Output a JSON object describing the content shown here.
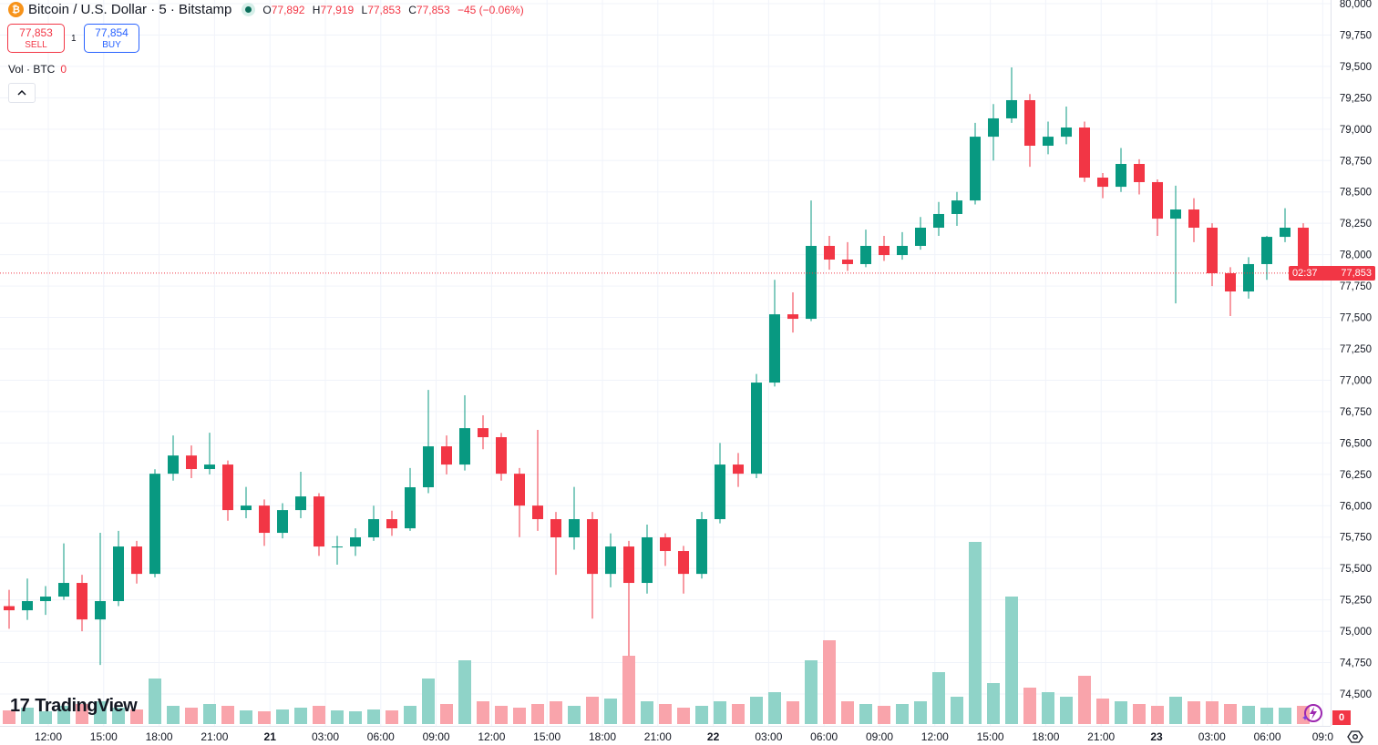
{
  "header": {
    "symbol_title": "Bitcoin / U.S. Dollar · 5 · Bitstamp",
    "logo_letter": "₿",
    "ohlc": {
      "o_label": "O",
      "o": "77,892",
      "h_label": "H",
      "h": "77,919",
      "l_label": "L",
      "l": "77,853",
      "c_label": "C",
      "c": "77,853",
      "change": "−45 (−0.06%)"
    },
    "sell": {
      "price": "77,853",
      "label": "SELL"
    },
    "buy": {
      "price": "77,854",
      "label": "BUY"
    },
    "spread": "1",
    "volume_legend": {
      "label": "Vol · BTC",
      "value": "0"
    },
    "collapse_icon": "chevron-up-icon"
  },
  "brand": {
    "mark": "17",
    "name": "TradingView"
  },
  "price_tag": {
    "price": "77,853",
    "countdown": "02:37"
  },
  "volume_badge": "0",
  "colors": {
    "up": "#089981",
    "down": "#f23645",
    "up_vol": "#8fd3c8",
    "down_vol": "#f9a4ab",
    "grid": "#f0f3fa",
    "last_price": "#f23645"
  },
  "chart_data": {
    "type": "candlestick",
    "interval_note": "5",
    "y_ticks": [
      "80,000",
      "79,750",
      "79,500",
      "79,250",
      "79,000",
      "78,750",
      "78,500",
      "78,250",
      "78,000",
      "77,750",
      "77,500",
      "77,250",
      "77,000",
      "76,750",
      "76,500",
      "76,250",
      "76,000",
      "75,750",
      "75,500",
      "75,250",
      "75,000",
      "74,750",
      "74,500"
    ],
    "ylim": [
      74500,
      80000
    ],
    "x_ticks": [
      {
        "label": "12:00",
        "bold": false
      },
      {
        "label": "15:00",
        "bold": false
      },
      {
        "label": "18:00",
        "bold": false
      },
      {
        "label": "21:00",
        "bold": false
      },
      {
        "label": "21",
        "bold": true
      },
      {
        "label": "03:00",
        "bold": false
      },
      {
        "label": "06:00",
        "bold": false
      },
      {
        "label": "09:00",
        "bold": false
      },
      {
        "label": "12:00",
        "bold": false
      },
      {
        "label": "15:00",
        "bold": false
      },
      {
        "label": "18:00",
        "bold": false
      },
      {
        "label": "21:00",
        "bold": false
      },
      {
        "label": "22",
        "bold": true
      },
      {
        "label": "03:00",
        "bold": false
      },
      {
        "label": "06:00",
        "bold": false
      },
      {
        "label": "09:00",
        "bold": false
      },
      {
        "label": "12:00",
        "bold": false
      },
      {
        "label": "15:00",
        "bold": false
      },
      {
        "label": "18:00",
        "bold": false
      },
      {
        "label": "21:00",
        "bold": false
      },
      {
        "label": "23",
        "bold": true
      },
      {
        "label": "03:00",
        "bold": false
      },
      {
        "label": "06:00",
        "bold": false
      },
      {
        "label": "09:0",
        "bold": false
      }
    ],
    "last_price": 77853,
    "candles_ohlc": [
      [
        75200,
        75330,
        75020,
        75167
      ],
      [
        75167,
        75420,
        75090,
        75240
      ],
      [
        75240,
        75360,
        75130,
        75276
      ],
      [
        75276,
        75700,
        75250,
        75385
      ],
      [
        75385,
        75450,
        75000,
        75094
      ],
      [
        75094,
        75784,
        74731,
        75240
      ],
      [
        75240,
        75800,
        75200,
        75675
      ],
      [
        75675,
        75720,
        75380,
        75457
      ],
      [
        75457,
        76290,
        75430,
        76255
      ],
      [
        76255,
        76560,
        76200,
        76400
      ],
      [
        76400,
        76480,
        76220,
        76292
      ],
      [
        76292,
        76582,
        76250,
        76328
      ],
      [
        76328,
        76360,
        75880,
        75965
      ],
      [
        75965,
        76150,
        75900,
        76001
      ],
      [
        76001,
        76050,
        75680,
        75784
      ],
      [
        75784,
        76020,
        75740,
        75965
      ],
      [
        75965,
        76270,
        75900,
        76074
      ],
      [
        76074,
        76100,
        75600,
        75675
      ],
      [
        75675,
        75760,
        75530,
        75675
      ],
      [
        75675,
        75820,
        75600,
        75748
      ],
      [
        75748,
        76000,
        75720,
        75893
      ],
      [
        75893,
        75960,
        75760,
        75820
      ],
      [
        75820,
        76300,
        75800,
        76147
      ],
      [
        76147,
        76923,
        76100,
        76473
      ],
      [
        76473,
        76560,
        76250,
        76328
      ],
      [
        76328,
        76880,
        76280,
        76618
      ],
      [
        76618,
        76720,
        76450,
        76546
      ],
      [
        76546,
        76580,
        76200,
        76255
      ],
      [
        76255,
        76300,
        75750,
        76001
      ],
      [
        76001,
        76604,
        75800,
        75893
      ],
      [
        75893,
        75950,
        75450,
        75748
      ],
      [
        75748,
        76150,
        75650,
        75893
      ],
      [
        75893,
        75950,
        75100,
        75457
      ],
      [
        75457,
        75780,
        75350,
        75675
      ],
      [
        75675,
        75720,
        74804,
        75385
      ],
      [
        75385,
        75850,
        75300,
        75748
      ],
      [
        75748,
        75780,
        75520,
        75639
      ],
      [
        75639,
        75680,
        75300,
        75457
      ],
      [
        75457,
        75950,
        75420,
        75893
      ],
      [
        75893,
        76500,
        75860,
        76328
      ],
      [
        76328,
        76420,
        76150,
        76255
      ],
      [
        76255,
        77050,
        76220,
        76981
      ],
      [
        76981,
        77800,
        76950,
        77525
      ],
      [
        77525,
        77700,
        77380,
        77489
      ],
      [
        77489,
        78432,
        77470,
        78070
      ],
      [
        78070,
        78150,
        77880,
        77961
      ],
      [
        77961,
        78100,
        77870,
        77925
      ],
      [
        77925,
        78200,
        77900,
        78070
      ],
      [
        78070,
        78150,
        77950,
        77997
      ],
      [
        77997,
        78180,
        77960,
        78070
      ],
      [
        78070,
        78300,
        78040,
        78215
      ],
      [
        78215,
        78420,
        78150,
        78324
      ],
      [
        78324,
        78500,
        78230,
        78432
      ],
      [
        78432,
        79050,
        78400,
        78940
      ],
      [
        78940,
        79200,
        78750,
        79086
      ],
      [
        79086,
        79492,
        79050,
        79231
      ],
      [
        79231,
        79280,
        78700,
        78868
      ],
      [
        78868,
        79060,
        78800,
        78940
      ],
      [
        78940,
        79180,
        78880,
        79013
      ],
      [
        79013,
        79060,
        78580,
        78614
      ],
      [
        78614,
        78650,
        78450,
        78541
      ],
      [
        78541,
        78850,
        78500,
        78723
      ],
      [
        78723,
        78760,
        78480,
        78578
      ],
      [
        78578,
        78600,
        78150,
        78287
      ],
      [
        78287,
        78550,
        77612,
        78360
      ],
      [
        78360,
        78450,
        78100,
        78215
      ],
      [
        78215,
        78250,
        77750,
        77852
      ],
      [
        77852,
        77900,
        77511,
        77707
      ],
      [
        77707,
        77980,
        77650,
        77925
      ],
      [
        77925,
        78150,
        77800,
        78142
      ],
      [
        78142,
        78370,
        78100,
        78215
      ],
      [
        78215,
        78250,
        77840,
        77853
      ]
    ],
    "volume_relative": [
      15,
      18,
      14,
      20,
      22,
      25,
      18,
      16,
      50,
      20,
      18,
      22,
      20,
      15,
      14,
      16,
      18,
      20,
      15,
      14,
      16,
      15,
      20,
      50,
      22,
      70,
      25,
      20,
      18,
      22,
      25,
      20,
      30,
      28,
      75,
      25,
      22,
      18,
      20,
      25,
      22,
      30,
      35,
      25,
      70,
      92,
      25,
      22,
      20,
      22,
      25,
      57,
      30,
      200,
      45,
      140,
      40,
      35,
      30,
      53,
      28,
      25,
      22,
      20,
      30,
      25,
      25,
      22,
      20,
      18,
      18,
      20
    ]
  }
}
